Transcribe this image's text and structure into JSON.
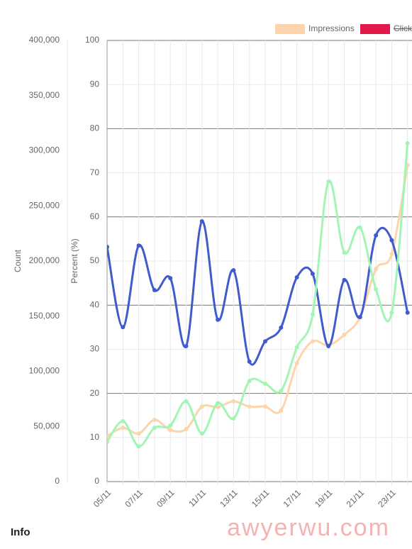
{
  "chart_data": {
    "type": "line",
    "ylabel": "Count",
    "y2label": "Percent (%)",
    "categories": [
      "05/11",
      null,
      "07/11",
      null,
      "09/11",
      null,
      "11/11",
      null,
      "13/11",
      null,
      "15/11",
      null,
      "17/11",
      null,
      "19/11",
      null,
      "21/11",
      null,
      "23/11",
      null
    ],
    "ylim": [
      0,
      400000
    ],
    "yticks": [
      0,
      {
        "value": 50000,
        "label": "50,000"
      },
      {
        "value": 100000,
        "label": "100,000"
      },
      {
        "value": 150000,
        "label": "150,000"
      },
      {
        "value": 200000,
        "label": "200,000"
      },
      {
        "value": 250000,
        "label": "250,000"
      },
      {
        "value": 300000,
        "label": "300,000"
      },
      {
        "value": 350000,
        "label": "350,000"
      },
      {
        "value": 400000,
        "label": "400,000"
      }
    ],
    "y2lim": [
      0,
      100
    ],
    "y2ticks": [
      0,
      10,
      20,
      30,
      40,
      50,
      60,
      70,
      80,
      90,
      100
    ],
    "grid": true,
    "legend": "top-right",
    "series": [
      {
        "name": "Impressions",
        "color": "#fdd4ab",
        "axis": "y2",
        "values": [
          10.3,
          12.2,
          10.9,
          14.0,
          11.7,
          11.9,
          17.0,
          16.9,
          18.2,
          17.0,
          17.0,
          16.1,
          26.8,
          31.8,
          30.9,
          33.3,
          37.3,
          48.2,
          51.6,
          71.7
        ]
      },
      {
        "name": "Clicks",
        "color": "#e0194a",
        "axis": "y2",
        "hidden": true
      },
      {
        "color": "#3f5bcc",
        "axis": "y2",
        "values": [
          53.2,
          35.0,
          53.5,
          43.4,
          46.1,
          30.7,
          59.0,
          36.7,
          47.9,
          27.2,
          31.8,
          34.9,
          46.3,
          47.1,
          30.7,
          45.7,
          37.3,
          55.8,
          54.7,
          38.3
        ]
      },
      {
        "color": "#a3f5b6",
        "axis": "y2",
        "values": [
          9.0,
          13.7,
          8.0,
          12.2,
          12.7,
          18.2,
          10.9,
          17.8,
          14.3,
          22.8,
          22.2,
          20.6,
          30.4,
          37.9,
          68.0,
          51.9,
          57.6,
          43.6,
          38.3,
          76.7
        ]
      }
    ]
  },
  "section_title": "Info",
  "watermark": "awyerwu.com"
}
